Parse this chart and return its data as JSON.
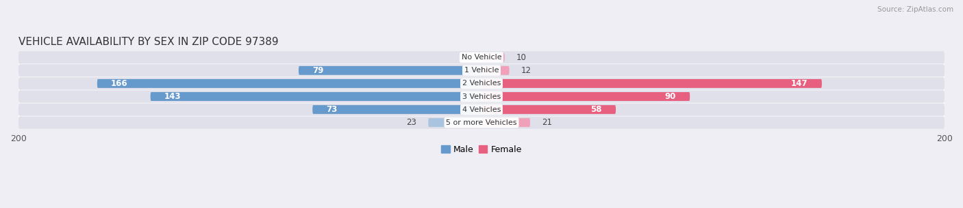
{
  "title": "VEHICLE AVAILABILITY BY SEX IN ZIP CODE 97389",
  "source": "Source: ZipAtlas.com",
  "categories": [
    "No Vehicle",
    "1 Vehicle",
    "2 Vehicles",
    "3 Vehicles",
    "4 Vehicles",
    "5 or more Vehicles"
  ],
  "male_values": [
    0,
    79,
    166,
    143,
    73,
    23
  ],
  "female_values": [
    10,
    12,
    147,
    90,
    58,
    21
  ],
  "male_color_large": "#6699cc",
  "male_color_small": "#aac4e0",
  "female_color_large": "#e86080",
  "female_color_small": "#f0a0b8",
  "x_max": 200,
  "background_color": "#eeeef4",
  "bar_background": "#e0e0ea",
  "bar_sep_color": "#ffffff",
  "label_threshold": 50,
  "title_fontsize": 11,
  "tick_fontsize": 9,
  "value_fontsize": 8.5,
  "cat_fontsize": 8
}
